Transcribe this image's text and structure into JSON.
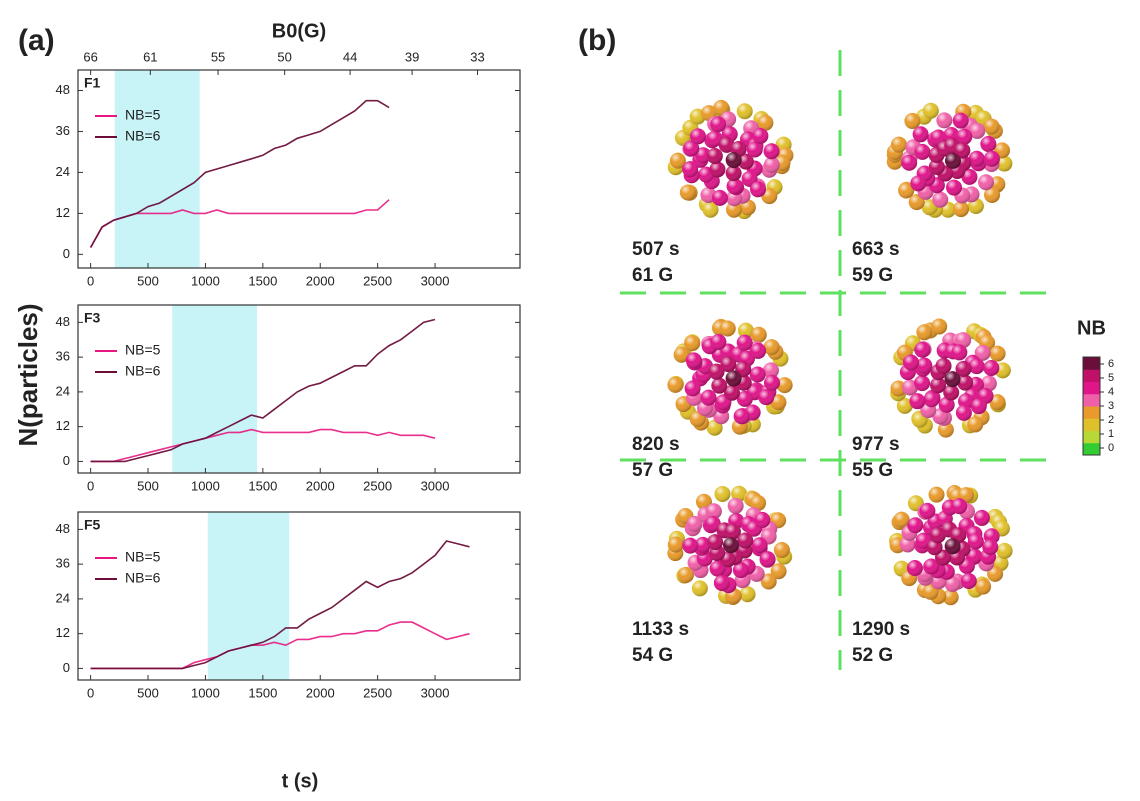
{
  "chart_data": [
    {
      "type": "line",
      "panel": "F1",
      "x": [
        0,
        100,
        200,
        300,
        400,
        500,
        600,
        700,
        800,
        900,
        1000,
        1100,
        1200,
        1300,
        1400,
        1500,
        1600,
        1700,
        1800,
        1900,
        2000,
        2100,
        2200,
        2300,
        2400,
        2500,
        2600
      ],
      "series": [
        {
          "name": "NB=5",
          "color": "#e8177f",
          "values": [
            2,
            8,
            10,
            11,
            12,
            12,
            12,
            12,
            13,
            12,
            12,
            13,
            12,
            12,
            12,
            12,
            12,
            12,
            12,
            12,
            12,
            12,
            12,
            12,
            13,
            13,
            16
          ]
        },
        {
          "name": "NB=6",
          "color": "#6b0f3a",
          "values": [
            2,
            8,
            10,
            11,
            12,
            14,
            15,
            17,
            19,
            21,
            24,
            25,
            26,
            27,
            28,
            29,
            31,
            32,
            34,
            35,
            36,
            38,
            40,
            42,
            45,
            45,
            43
          ]
        }
      ],
      "shaded_region": [
        210,
        950
      ],
      "top_axis": {
        "label": "B0(G)",
        "ticks": [
          {
            "value": 0,
            "label": "66"
          },
          {
            "value": 520,
            "label": "61"
          },
          {
            "value": 1110,
            "label": "55"
          },
          {
            "value": 1690,
            "label": "50"
          },
          {
            "value": 2260,
            "label": "44"
          },
          {
            "value": 2800,
            "label": "39"
          },
          {
            "value": 3370,
            "label": "33"
          }
        ]
      },
      "xlim": [
        -110,
        3740
      ],
      "ylim": [
        -4,
        54
      ],
      "xticks": [
        0,
        500,
        1000,
        1500,
        2000,
        2500,
        3000
      ],
      "yticks": [
        0,
        12,
        24,
        36,
        48
      ]
    },
    {
      "type": "line",
      "panel": "F3",
      "x": [
        0,
        100,
        200,
        300,
        400,
        500,
        600,
        700,
        800,
        900,
        1000,
        1100,
        1200,
        1300,
        1400,
        1500,
        1600,
        1700,
        1800,
        1900,
        2000,
        2100,
        2200,
        2300,
        2400,
        2500,
        2600,
        2700,
        2800,
        2900,
        3000
      ],
      "series": [
        {
          "name": "NB=5",
          "color": "#e8177f",
          "values": [
            0,
            0,
            0,
            1,
            2,
            3,
            4,
            5,
            6,
            7,
            8,
            9,
            10,
            10,
            11,
            10,
            10,
            10,
            10,
            10,
            11,
            11,
            10,
            10,
            10,
            9,
            10,
            9,
            9,
            9,
            8
          ]
        },
        {
          "name": "NB=6",
          "color": "#6b0f3a",
          "values": [
            0,
            0,
            0,
            0,
            1,
            2,
            3,
            4,
            6,
            7,
            8,
            10,
            12,
            14,
            16,
            15,
            18,
            21,
            24,
            26,
            27,
            29,
            31,
            33,
            33,
            37,
            40,
            42,
            45,
            48,
            49
          ]
        }
      ],
      "shaded_region": [
        710,
        1450
      ],
      "xlim": [
        -110,
        3740
      ],
      "ylim": [
        -4,
        54
      ],
      "xticks": [
        0,
        500,
        1000,
        1500,
        2000,
        2500,
        3000
      ],
      "yticks": [
        0,
        12,
        24,
        36,
        48
      ]
    },
    {
      "type": "line",
      "panel": "F5",
      "x": [
        0,
        100,
        200,
        300,
        400,
        500,
        600,
        700,
        800,
        900,
        1000,
        1100,
        1200,
        1300,
        1400,
        1500,
        1600,
        1700,
        1800,
        1900,
        2000,
        2100,
        2200,
        2300,
        2400,
        2500,
        2600,
        2700,
        2800,
        2900,
        3000,
        3100,
        3200,
        3300
      ],
      "series": [
        {
          "name": "NB=5",
          "color": "#e8177f",
          "values": [
            0,
            0,
            0,
            0,
            0,
            0,
            0,
            0,
            0,
            2,
            3,
            4,
            6,
            7,
            8,
            8,
            9,
            8,
            10,
            10,
            11,
            11,
            12,
            12,
            13,
            13,
            15,
            16,
            16,
            14,
            12,
            10,
            11,
            12
          ]
        },
        {
          "name": "NB=6",
          "color": "#6b0f3a",
          "values": [
            0,
            0,
            0,
            0,
            0,
            0,
            0,
            0,
            0,
            1,
            2,
            4,
            6,
            7,
            8,
            9,
            11,
            14,
            14,
            17,
            19,
            21,
            24,
            27,
            30,
            28,
            30,
            31,
            33,
            36,
            39,
            44,
            43,
            42
          ]
        }
      ],
      "shaded_region": [
        1020,
        1730
      ],
      "xlim": [
        -110,
        3740
      ],
      "ylim": [
        -4,
        54
      ],
      "xticks": [
        0,
        500,
        1000,
        1500,
        2000,
        2500,
        3000
      ],
      "yticks": [
        0,
        12,
        24,
        36,
        48
      ]
    }
  ],
  "labels": {
    "panel_a": "(a)",
    "panel_b": "(b)",
    "y_axis": "N(particles)",
    "x_axis": "t (s)"
  },
  "snapshots": [
    {
      "time": "507 s",
      "field": "61 G"
    },
    {
      "time": "663 s",
      "field": "59 G"
    },
    {
      "time": "820 s",
      "field": "57 G"
    },
    {
      "time": "977 s",
      "field": "55 G"
    },
    {
      "time": "1133 s",
      "field": "54 G"
    },
    {
      "time": "1290 s",
      "field": "52 G"
    }
  ],
  "colorbar": {
    "title": "NB",
    "ticks": [
      0,
      1,
      2,
      3,
      4,
      5,
      6
    ],
    "colors": [
      "#33cc33",
      "#b8d838",
      "#e0c02a",
      "#e89a2a",
      "#f060a8",
      "#e0158a",
      "#c01068",
      "#6b0f3a"
    ]
  }
}
